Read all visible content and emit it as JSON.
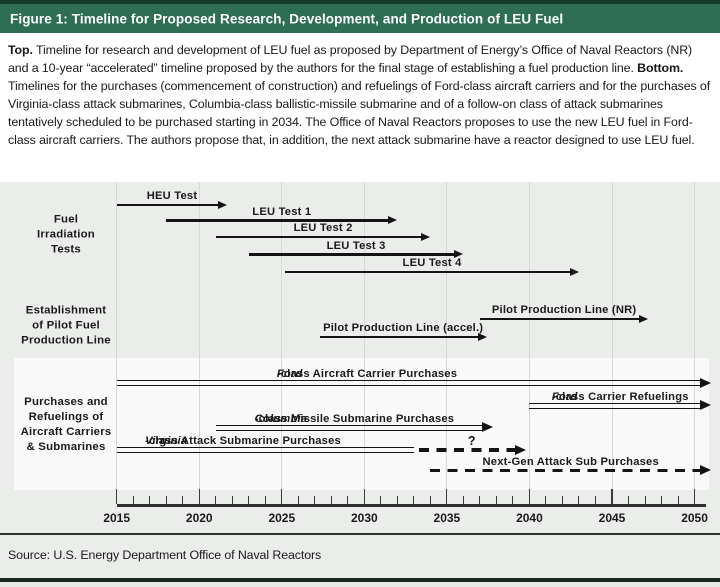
{
  "header": {
    "title": "Figure 1: Timeline for Proposed Research, Development, and Production of LEU Fuel"
  },
  "caption": {
    "top_label": "Top.",
    "top_text": " Timeline for research and development of LEU fuel as proposed by Department of Energy’s Office of Naval Reactors (NR) and a 10-year “accelerated” timeline proposed by the authors for the final stage of establishing a fuel production line. ",
    "bottom_label": "Bottom.",
    "bottom_text": " Timelines for the purchases (commencement of construction) and refuelings of Ford-class aircraft carriers and for the purchases of Virginia-class attack submarines, Columbia-class ballistic-missile submarine and of a follow-on class of attack submarines tentatively scheduled to be purchased starting in 2034. The Office of Naval Reactors proposes to use the new LEU fuel in Ford-class aircraft carriers. The authors propose that, in addition, the next attack submarine have a reactor designed to use LEU fuel."
  },
  "chart_data": {
    "type": "timeline",
    "title": "Timeline for Proposed Research, Development, and Production of LEU Fuel",
    "x_axis": {
      "tick_years": [
        2015,
        2020,
        2025,
        2030,
        2035,
        2040,
        2045,
        2050
      ],
      "minor_tick_interval_years": 1,
      "range": [
        2015,
        2051
      ],
      "grid": true
    },
    "groups": [
      {
        "label": "Fuel\nIrradiation\nTests",
        "boxed": false,
        "rows": [
          {
            "label": "HEU Test",
            "start": 2015,
            "end": 2021.7,
            "style": "solid"
          },
          {
            "label": "LEU Test 1",
            "start": 2018,
            "end": 2032,
            "style": "solid"
          },
          {
            "label": "LEU Test 2",
            "start": 2021,
            "end": 2034,
            "style": "solid"
          },
          {
            "label": "LEU Test 3",
            "start": 2023,
            "end": 2036,
            "style": "solid"
          },
          {
            "label": "LEU Test 4",
            "start": 2025.2,
            "end": 2043,
            "style": "solid"
          }
        ]
      },
      {
        "label": "Establishment\nof Pilot Fuel\nProduction Line",
        "boxed": false,
        "rows": [
          {
            "label": "Pilot Production Line (NR)",
            "start": 2037,
            "end": 2047.2,
            "style": "solid"
          },
          {
            "label": "Pilot Production Line (accel.)",
            "start": 2027.3,
            "end": 2037.4,
            "style": "solid"
          }
        ]
      },
      {
        "label": "Purchases and\nRefuelings of\nAircraft Carriers\n& Submarines",
        "boxed": true,
        "rows": [
          {
            "label": "Ford-class Aircraft Carrier Purchases",
            "italic_prefix": "Ford",
            "start": 2015,
            "end": 2051,
            "style": "double"
          },
          {
            "label": "Ford-class Carrier Refuelings",
            "italic_prefix": "Ford",
            "start": 2040,
            "end": 2051,
            "style": "double"
          },
          {
            "label": "Columbia-class Missile Submarine Purchases",
            "italic_prefix": "Columbia",
            "start": 2021,
            "end": 2037.8,
            "style": "double"
          },
          {
            "label": "Virginia-class Attack Submarine Purchases",
            "italic_prefix": "Virginia",
            "start": 2015,
            "end": 2033,
            "style": "double",
            "arrowhead": false,
            "extension": {
              "style": "dashed",
              "start": 2033.3,
              "end": 2039.8,
              "annotation": "?",
              "annotation_year": 2036.5
            }
          },
          {
            "label": "Next-Gen Attack Sub Purchases",
            "start": 2034,
            "end": 2051,
            "style": "dashed"
          }
        ]
      }
    ]
  },
  "source": {
    "text": "Source: U.S. Energy Department Office of Naval Reactors"
  },
  "colors": {
    "header_green": "#2d6e55",
    "header_border": "#163c2d",
    "plot_bg": "#ebedeb",
    "gridline": "#d6d8d6",
    "group_box_bg": "#f8f9f8",
    "arrow": "#141414",
    "text": "#191919",
    "rule_dark": "#2b352f"
  }
}
